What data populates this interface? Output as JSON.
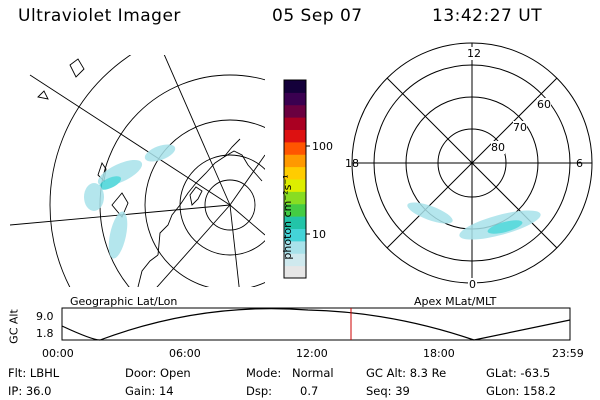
{
  "header": {
    "title": "Ultraviolet Imager",
    "date": "05 Sep 07",
    "time": "13:42:27 UT"
  },
  "left_map": {
    "label": "Geographic Lat/Lon"
  },
  "colorbar": {
    "label": "photon cm⁻²s⁻¹",
    "ticks": [
      "100",
      "10"
    ],
    "scale": "log",
    "colors": [
      "#e6e6e6",
      "#cfe9ee",
      "#a8e2ea",
      "#44d4d8",
      "#22c4a8",
      "#44cc44",
      "#88dd22",
      "#ddee00",
      "#ffcc00",
      "#ff9900",
      "#ff5500",
      "#dd1111",
      "#aa0022",
      "#6a0040",
      "#3a0050",
      "#14003a"
    ]
  },
  "right_map": {
    "label": "Apex MLat/MLT",
    "mlt_labels": [
      "12",
      "18",
      "6",
      "0"
    ],
    "lat_labels": [
      "60",
      "70",
      "80"
    ]
  },
  "altitude_plot": {
    "ylabel": "GC Alt",
    "yticks": [
      "9.0",
      "1.8"
    ],
    "xticks": [
      "00:00",
      "06:00",
      "12:00",
      "18:00",
      "23:59"
    ],
    "current_time_marker": "13:42",
    "marker_color": "#cc0000"
  },
  "info": {
    "row1": {
      "filter": "Flt: LBHL",
      "door": "Door: Open",
      "mode_label": "Mode:",
      "mode_value": "Normal",
      "gc_alt": "GC Alt: 8.3 Re",
      "glat": "GLat: -63.5"
    },
    "row2": {
      "ip": "IP: 36.0",
      "gain": "Gain: 14",
      "dsp_label": "Dsp:",
      "dsp_value": "0.7",
      "seq": "Seq: 39",
      "glon": "GLon: 158.2"
    }
  }
}
